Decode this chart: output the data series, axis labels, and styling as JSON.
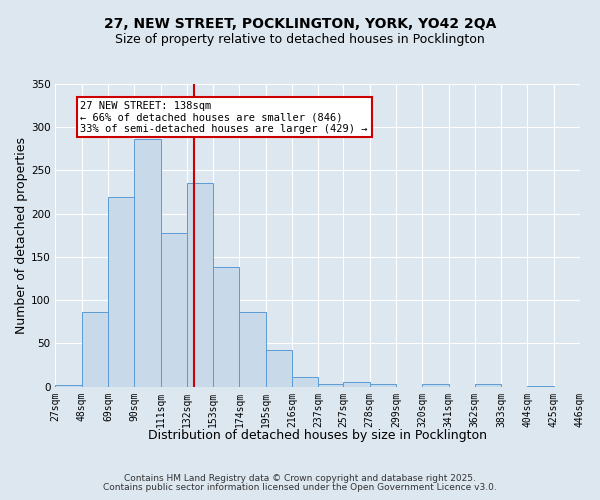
{
  "title_line1": "27, NEW STREET, POCKLINGTON, YORK, YO42 2QA",
  "title_line2": "Size of property relative to detached houses in Pocklington",
  "xlabel": "Distribution of detached houses by size in Pocklington",
  "ylabel": "Number of detached properties",
  "bin_edges": [
    27,
    48,
    69,
    90,
    111,
    132,
    153,
    174,
    195,
    216,
    237,
    257,
    278,
    299,
    320,
    341,
    362,
    383,
    404,
    425,
    446
  ],
  "bar_heights": [
    2,
    86,
    219,
    286,
    178,
    235,
    138,
    86,
    42,
    11,
    3,
    5,
    3,
    0,
    3,
    0,
    3,
    0,
    1,
    0
  ],
  "bar_color": "#c8d9ea",
  "bar_edge_color": "#5b9bd5",
  "vline_x": 138,
  "vline_color": "#cc0000",
  "annotation_text": "27 NEW STREET: 138sqm\n← 66% of detached houses are smaller (846)\n33% of semi-detached houses are larger (429) →",
  "annotation_box_color": "#ffffff",
  "annotation_box_edge": "#cc0000",
  "ylim": [
    0,
    350
  ],
  "yticks": [
    0,
    50,
    100,
    150,
    200,
    250,
    300,
    350
  ],
  "background_color": "#dde7f0",
  "grid_color": "#ffffff",
  "footer_line1": "Contains HM Land Registry data © Crown copyright and database right 2025.",
  "footer_line2": "Contains public sector information licensed under the Open Government Licence v3.0.",
  "title_fontsize": 10,
  "subtitle_fontsize": 9,
  "axis_label_fontsize": 9,
  "tick_fontsize": 7,
  "annotation_fontsize": 7.5,
  "footer_fontsize": 6.5
}
